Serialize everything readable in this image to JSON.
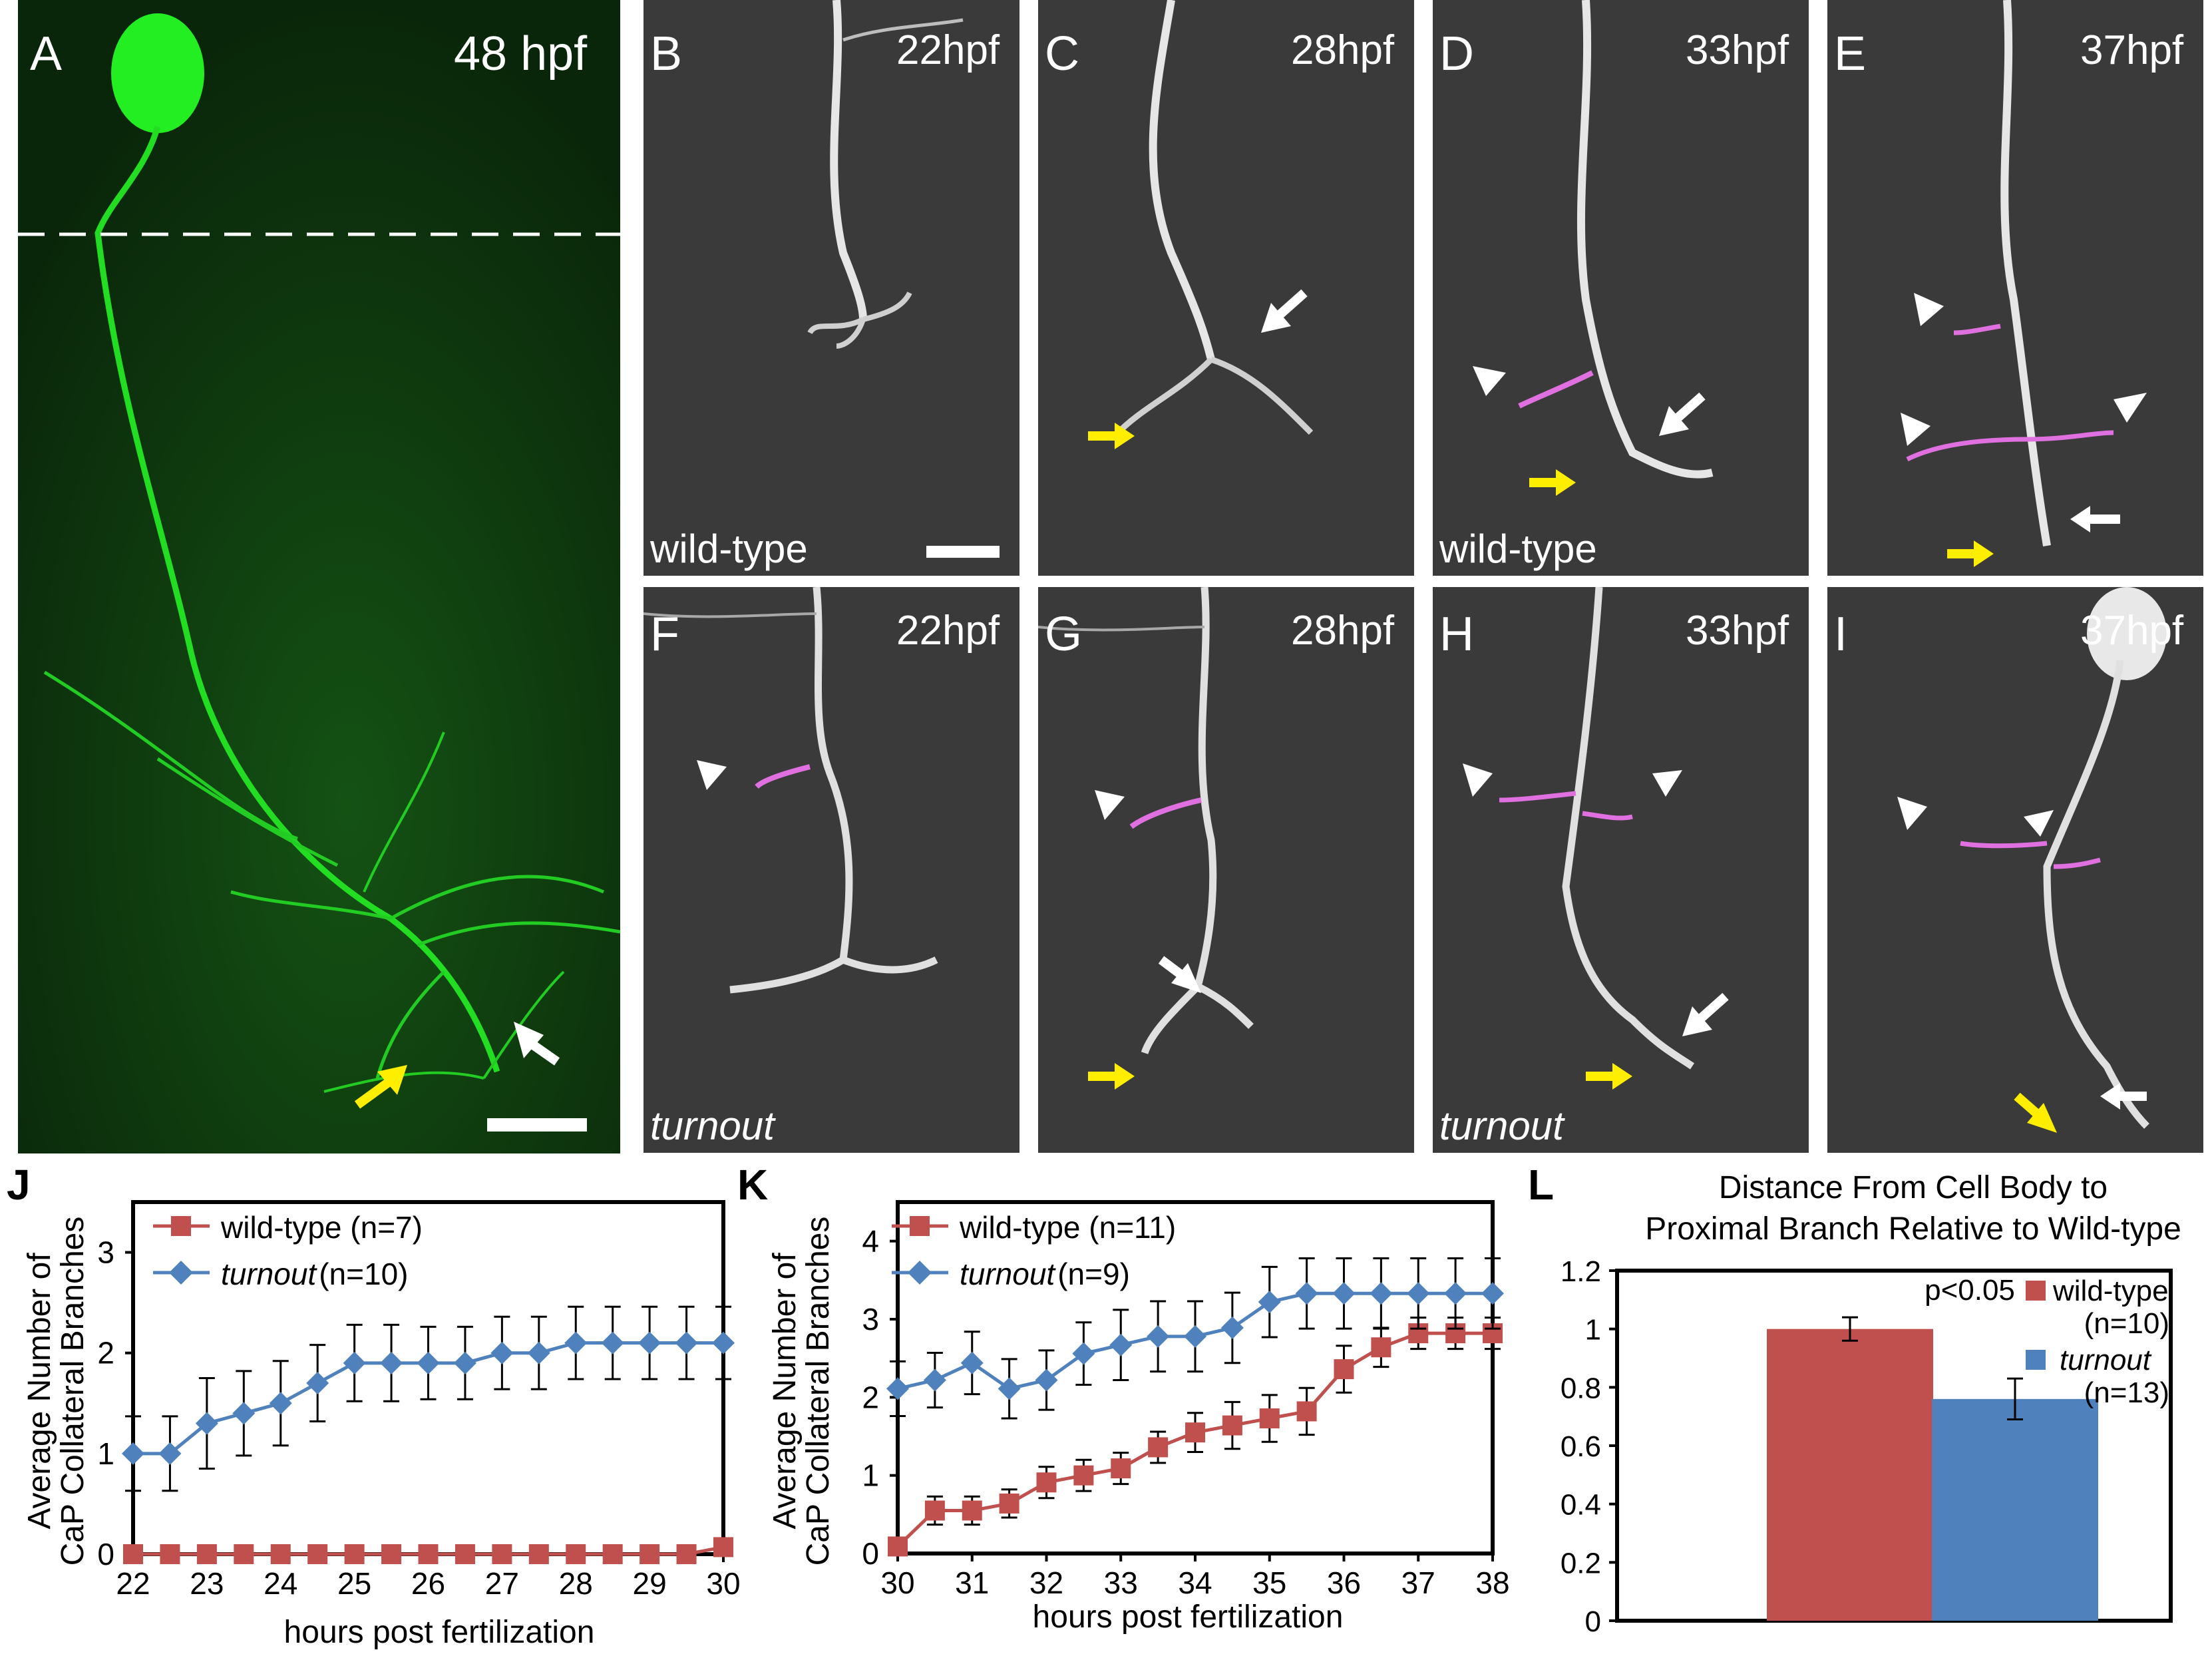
{
  "figure": {
    "panels": {
      "A": {
        "letter": "A",
        "time": "48 hpf"
      },
      "B": {
        "letter": "B",
        "time": "22hpf",
        "genotype": "wild-type"
      },
      "C": {
        "letter": "C",
        "time": "28hpf"
      },
      "D": {
        "letter": "D",
        "time": "33hpf",
        "genotype": "wild-type"
      },
      "E": {
        "letter": "E",
        "time": "37hpf"
      },
      "F": {
        "letter": "F",
        "time": "22hpf",
        "genotype": "turnout"
      },
      "G": {
        "letter": "G",
        "time": "28hpf"
      },
      "H": {
        "letter": "H",
        "time": "33hpf",
        "genotype": "turnout"
      },
      "I": {
        "letter": "I",
        "time": "37hpf"
      }
    },
    "colors": {
      "fluorescence": "#22dd22",
      "highlight": "#e070e0",
      "arrow_white": "#ffffff",
      "arrow_yellow": "#ffee00",
      "wild_type": "#c0504d",
      "turnout": "#4f81bd"
    }
  },
  "chart_data": [
    {
      "type": "line",
      "panel_letter": "J",
      "xlabel": "hours post fertilization",
      "ylabel_lines": [
        "Average Number of",
        "CaP Collateral Branches"
      ],
      "xlim": [
        22,
        30
      ],
      "ylim": [
        0,
        3.5
      ],
      "x_ticks": [
        "22",
        "23",
        "24",
        "25",
        "26",
        "27",
        "28",
        "29",
        "30"
      ],
      "y_ticks": [
        "0",
        "1",
        "2",
        "3"
      ],
      "x": [
        22,
        22.5,
        23,
        23.5,
        24,
        24.5,
        25,
        25.5,
        26,
        26.5,
        27,
        27.5,
        28,
        28.5,
        29,
        29.5,
        30
      ],
      "series": [
        {
          "name": "wild-type",
          "n_label": "(n=7)",
          "color": "#c0504d",
          "marker": "square",
          "values": [
            0,
            0,
            0,
            0,
            0,
            0,
            0,
            0,
            0,
            0,
            0,
            0,
            0,
            0,
            0,
            0,
            0.07
          ]
        },
        {
          "name": "turnout",
          "n_label": "(n=10)",
          "color": "#4f81bd",
          "marker": "diamond",
          "values": [
            1.0,
            1.0,
            1.3,
            1.4,
            1.5,
            1.7,
            1.9,
            1.9,
            1.9,
            1.9,
            2.0,
            2.0,
            2.1,
            2.1,
            2.1,
            2.1,
            2.1
          ],
          "errors": [
            0.37,
            0.37,
            0.45,
            0.42,
            0.42,
            0.38,
            0.38,
            0.38,
            0.36,
            0.36,
            0.36,
            0.36,
            0.36,
            0.36,
            0.36,
            0.36,
            0.36
          ]
        }
      ]
    },
    {
      "type": "line",
      "panel_letter": "K",
      "xlabel": "hours post fertilization",
      "ylabel_lines": [
        "Average Number of",
        "CaP Collateral Branches"
      ],
      "xlim": [
        30,
        38
      ],
      "ylim": [
        0,
        4.5
      ],
      "x_ticks": [
        "30",
        "31",
        "32",
        "33",
        "34",
        "35",
        "36",
        "37",
        "38"
      ],
      "y_ticks": [
        "0",
        "1",
        "2",
        "3",
        "4"
      ],
      "x": [
        30,
        30.5,
        31,
        31.5,
        32,
        32.5,
        33,
        33.5,
        34,
        34.5,
        35,
        35.5,
        36,
        36.5,
        37,
        37.5,
        38
      ],
      "series": [
        {
          "name": "wild-type",
          "n_label": "(n=11)",
          "color": "#c0504d",
          "marker": "square",
          "values": [
            0.09,
            0.55,
            0.55,
            0.64,
            0.91,
            1.0,
            1.09,
            1.36,
            1.55,
            1.64,
            1.73,
            1.82,
            2.36,
            2.64,
            2.82,
            2.82,
            2.82
          ],
          "errors": [
            0,
            0.18,
            0.18,
            0.18,
            0.2,
            0.2,
            0.2,
            0.2,
            0.25,
            0.3,
            0.3,
            0.3,
            0.3,
            0.25,
            0.2,
            0.2,
            0.2
          ]
        },
        {
          "name": "turnout",
          "n_label": "(n=9)",
          "color": "#4f81bd",
          "marker": "diamond",
          "values": [
            2.11,
            2.22,
            2.44,
            2.11,
            2.22,
            2.56,
            2.67,
            2.78,
            2.78,
            2.89,
            3.22,
            3.33,
            3.33,
            3.33,
            3.33,
            3.33,
            3.33
          ],
          "errors": [
            0.35,
            0.35,
            0.4,
            0.38,
            0.38,
            0.4,
            0.45,
            0.45,
            0.45,
            0.45,
            0.45,
            0.45,
            0.45,
            0.45,
            0.45,
            0.45,
            0.45
          ]
        }
      ]
    },
    {
      "type": "bar",
      "panel_letter": "L",
      "title_lines": [
        "Distance From Cell Body to",
        "Proximal Branch Relative to Wild-type"
      ],
      "ylim": [
        0,
        1.2
      ],
      "y_ticks": [
        "0",
        "0.2",
        "0.4",
        "0.6",
        "0.8",
        "1",
        "1.2"
      ],
      "categories": [
        "wild-type",
        "turnout"
      ],
      "n_labels": [
        "(n=10)",
        "(n=13)"
      ],
      "values": [
        1.0,
        0.76
      ],
      "errors": [
        0.04,
        0.07
      ],
      "colors": [
        "#c0504d",
        "#4f81bd"
      ],
      "annotation": "p<0.05"
    }
  ]
}
